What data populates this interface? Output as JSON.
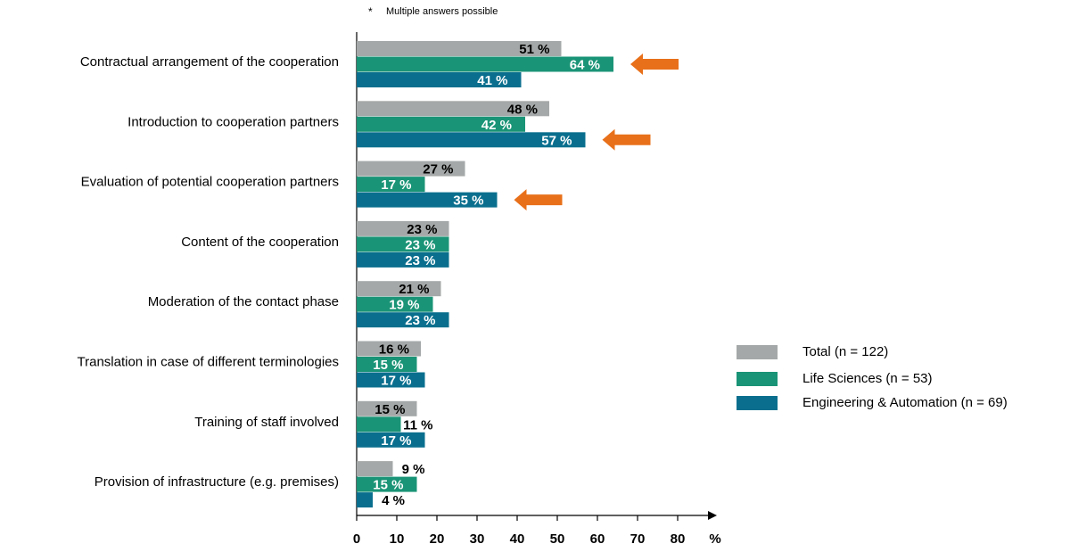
{
  "footnote": {
    "marker": "*",
    "text": "Multiple answers possible"
  },
  "chart_data": {
    "type": "bar",
    "orientation": "horizontal",
    "categories": [
      "Contractual arrangement of the cooperation",
      "Introduction to cooperation partners",
      "Evaluation of potential cooperation partners",
      "Content of the cooperation",
      "Moderation of the contact phase",
      "Translation in case of different terminologies",
      "Training of staff involved",
      "Provision of infrastructure (e.g. premises)"
    ],
    "series": [
      {
        "name": "Total (n = 122)",
        "color": "#A5A8A8",
        "values": [
          51,
          48,
          27,
          23,
          21,
          16,
          15,
          9
        ]
      },
      {
        "name": "Life Sciences (n = 53)",
        "color": "#1A9476",
        "values": [
          64,
          42,
          17,
          23,
          19,
          15,
          11,
          15
        ]
      },
      {
        "name": "Engineering & Automation (n = 69)",
        "color": "#0A6F8E",
        "values": [
          41,
          57,
          35,
          23,
          23,
          17,
          17,
          4
        ]
      }
    ],
    "data_label_suffix": " %",
    "x_ticks": [
      0,
      10,
      20,
      30,
      40,
      50,
      60,
      70,
      80
    ],
    "x_unit_label": "%",
    "xlim": [
      0,
      90
    ],
    "highlight": {
      "color": "#E8701A",
      "marks": [
        {
          "category_index": 0,
          "series_index": 1
        },
        {
          "category_index": 1,
          "series_index": 2
        },
        {
          "category_index": 2,
          "series_index": 2
        }
      ]
    },
    "legend_position": "right",
    "grid": false
  }
}
